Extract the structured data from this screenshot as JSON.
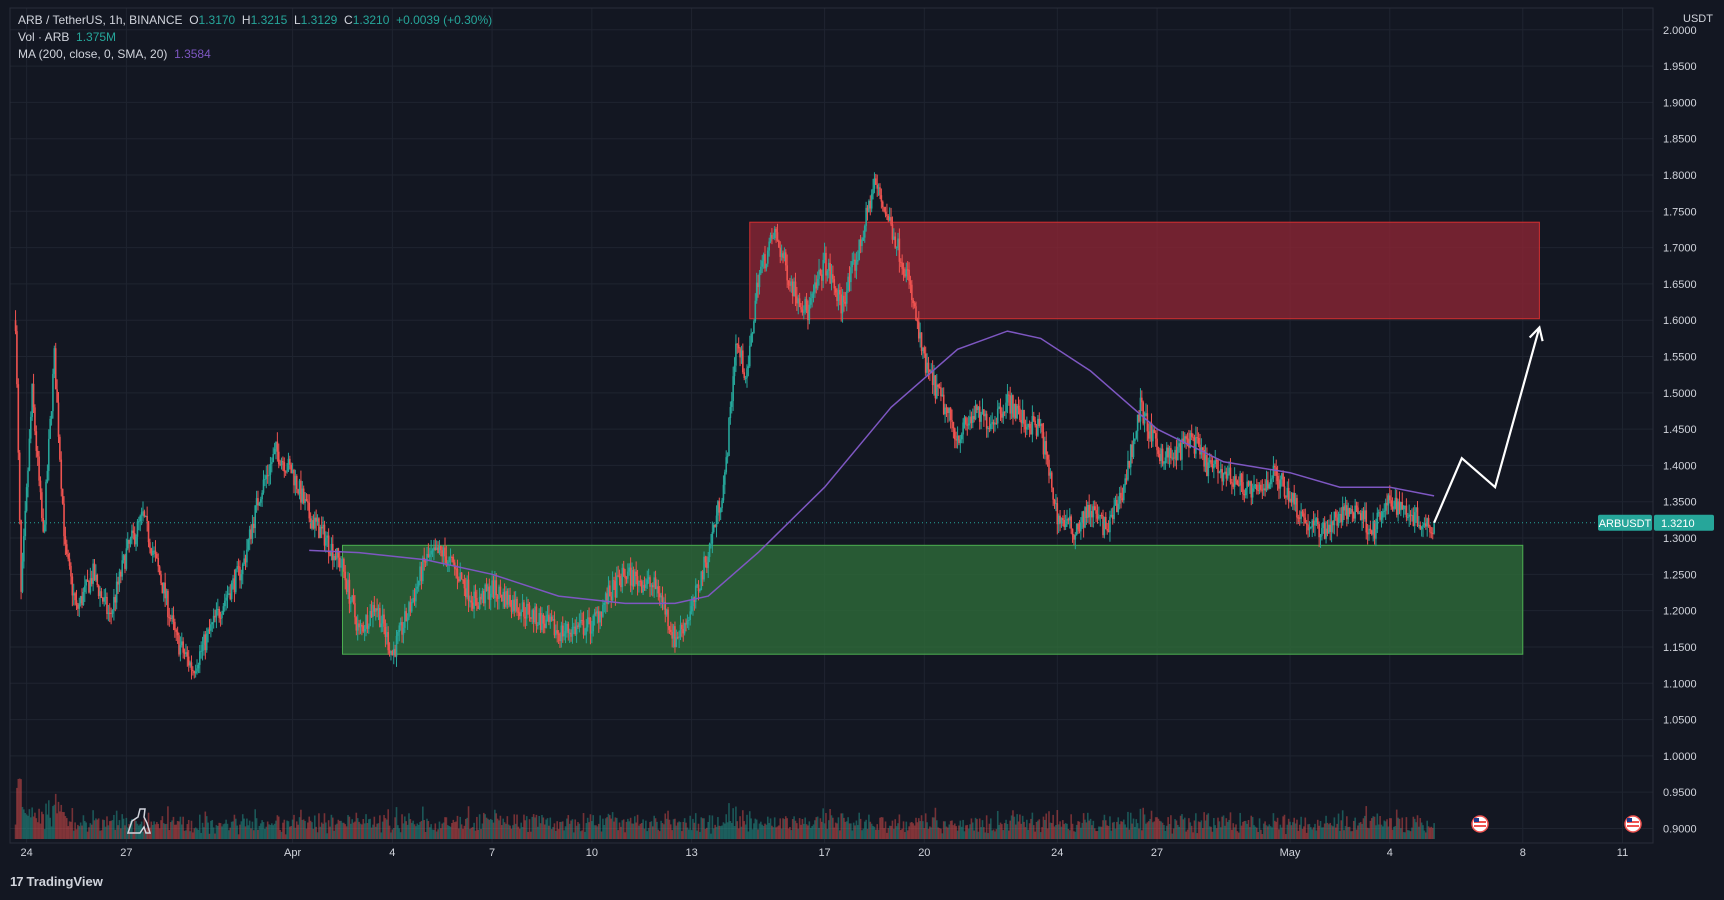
{
  "header": {
    "symbol": "ARB / TetherUS, 1h, BINANCE",
    "open_label": "O",
    "open": "1.3170",
    "high_label": "H",
    "high": "1.3215",
    "low_label": "L",
    "low": "1.3129",
    "close_label": "C",
    "close": "1.3210",
    "change": "+0.0039 (+0.30%)",
    "vol_label": "Vol · ARB",
    "vol_value": "1.375M",
    "ma_label": "MA (200, close, 0, SMA, 20)",
    "ma_value": "1.3584"
  },
  "price_axis": {
    "currency": "USDT",
    "ticker_label": "ARBUSDT",
    "last_price": "1.3210"
  },
  "branding": "TradingView",
  "colors": {
    "background": "#131722",
    "up": "#26a69a",
    "down": "#ef5350",
    "ma": "#7e57c2",
    "resistance_zone": "#8b2635",
    "support_zone": "#2e6b3a",
    "grid": "#1f2430",
    "text": "#d1d4dc"
  },
  "chart_data": {
    "type": "candlestick",
    "timeframe": "1h",
    "x_tick_labels": [
      "24",
      "27",
      "Apr",
      "4",
      "7",
      "10",
      "13",
      "17",
      "20",
      "24",
      "27",
      "May",
      "4",
      "8",
      "11"
    ],
    "y_tick_labels": [
      "2.0000",
      "1.9500",
      "1.9000",
      "1.8500",
      "1.8000",
      "1.7500",
      "1.7000",
      "1.6500",
      "1.6000",
      "1.5500",
      "1.5000",
      "1.4500",
      "1.4000",
      "1.3500",
      "1.3000",
      "1.2500",
      "1.2000",
      "1.1500",
      "1.1000",
      "1.0500",
      "1.0000",
      "0.9500",
      "0.9000"
    ],
    "ylim": [
      0.88,
      2.03
    ],
    "last_price": 1.321,
    "price_path": [
      [
        "2023-03-23 16:00",
        1.6
      ],
      [
        "2023-03-23 20:00",
        1.22
      ],
      [
        "2023-03-24 04:00",
        1.5
      ],
      [
        "2023-03-24 12:00",
        1.3
      ],
      [
        "2023-03-24 20:00",
        1.55
      ],
      [
        "2023-03-25 04:00",
        1.28
      ],
      [
        "2023-03-25 12:00",
        1.2
      ],
      [
        "2023-03-26 00:00",
        1.25
      ],
      [
        "2023-03-26 12:00",
        1.19
      ],
      [
        "2023-03-27 00:00",
        1.28
      ],
      [
        "2023-03-27 12:00",
        1.33
      ],
      [
        "2023-03-28 00:00",
        1.25
      ],
      [
        "2023-03-28 12:00",
        1.16
      ],
      [
        "2023-03-29 00:00",
        1.12
      ],
      [
        "2023-03-29 12:00",
        1.17
      ],
      [
        "2023-03-30 00:00",
        1.22
      ],
      [
        "2023-03-30 12:00",
        1.26
      ],
      [
        "2023-03-31 00:00",
        1.36
      ],
      [
        "2023-03-31 12:00",
        1.42
      ],
      [
        "2023-04-01 00:00",
        1.39
      ],
      [
        "2023-04-01 12:00",
        1.33
      ],
      [
        "2023-04-02 00:00",
        1.3
      ],
      [
        "2023-04-02 12:00",
        1.26
      ],
      [
        "2023-04-03 00:00",
        1.17
      ],
      [
        "2023-04-03 12:00",
        1.21
      ],
      [
        "2023-04-04 00:00",
        1.14
      ],
      [
        "2023-04-04 12:00",
        1.2
      ],
      [
        "2023-04-05 00:00",
        1.27
      ],
      [
        "2023-04-05 12:00",
        1.28
      ],
      [
        "2023-04-06 00:00",
        1.25
      ],
      [
        "2023-04-06 12:00",
        1.21
      ],
      [
        "2023-04-07 00:00",
        1.23
      ],
      [
        "2023-04-08 00:00",
        1.2
      ],
      [
        "2023-04-09 00:00",
        1.17
      ],
      [
        "2023-04-10 00:00",
        1.18
      ],
      [
        "2023-04-10 12:00",
        1.22
      ],
      [
        "2023-04-11 00:00",
        1.25
      ],
      [
        "2023-04-12 00:00",
        1.23
      ],
      [
        "2023-04-12 12:00",
        1.16
      ],
      [
        "2023-04-13 00:00",
        1.2
      ],
      [
        "2023-04-13 12:00",
        1.28
      ],
      [
        "2023-04-14 00:00",
        1.38
      ],
      [
        "2023-04-14 08:00",
        1.57
      ],
      [
        "2023-04-14 16:00",
        1.52
      ],
      [
        "2023-04-15 00:00",
        1.66
      ],
      [
        "2023-04-15 12:00",
        1.72
      ],
      [
        "2023-04-16 00:00",
        1.65
      ],
      [
        "2023-04-16 12:00",
        1.61
      ],
      [
        "2023-04-17 00:00",
        1.68
      ],
      [
        "2023-04-17 12:00",
        1.62
      ],
      [
        "2023-04-18 00:00",
        1.69
      ],
      [
        "2023-04-18 12:00",
        1.79
      ],
      [
        "2023-04-19 00:00",
        1.73
      ],
      [
        "2023-04-19 12:00",
        1.66
      ],
      [
        "2023-04-20 00:00",
        1.54
      ],
      [
        "2023-04-20 12:00",
        1.49
      ],
      [
        "2023-04-21 00:00",
        1.44
      ],
      [
        "2023-04-21 12:00",
        1.47
      ],
      [
        "2023-04-22 00:00",
        1.46
      ],
      [
        "2023-04-22 12:00",
        1.49
      ],
      [
        "2023-04-23 00:00",
        1.46
      ],
      [
        "2023-04-23 12:00",
        1.45
      ],
      [
        "2023-04-24 00:00",
        1.33
      ],
      [
        "2023-04-24 12:00",
        1.31
      ],
      [
        "2023-04-25 00:00",
        1.34
      ],
      [
        "2023-04-25 12:00",
        1.31
      ],
      [
        "2023-04-26 00:00",
        1.37
      ],
      [
        "2023-04-26 12:00",
        1.48
      ],
      [
        "2023-04-27 00:00",
        1.42
      ],
      [
        "2023-04-27 12:00",
        1.41
      ],
      [
        "2023-04-28 00:00",
        1.44
      ],
      [
        "2023-04-28 12:00",
        1.4
      ],
      [
        "2023-04-29 00:00",
        1.39
      ],
      [
        "2023-04-30 00:00",
        1.36
      ],
      [
        "2023-04-30 12:00",
        1.39
      ],
      [
        "2023-05-01 00:00",
        1.36
      ],
      [
        "2023-05-01 12:00",
        1.32
      ],
      [
        "2023-05-02 00:00",
        1.31
      ],
      [
        "2023-05-02 12:00",
        1.33
      ],
      [
        "2023-05-03 00:00",
        1.34
      ],
      [
        "2023-05-03 12:00",
        1.31
      ],
      [
        "2023-05-04 00:00",
        1.35
      ],
      [
        "2023-05-04 12:00",
        1.34
      ],
      [
        "2023-05-05 00:00",
        1.32
      ],
      [
        "2023-05-05 08:00",
        1.321
      ]
    ],
    "ma_200": [
      [
        "2023-04-01 12:00",
        1.283
      ],
      [
        "2023-04-03 00:00",
        1.28
      ],
      [
        "2023-04-05 00:00",
        1.27
      ],
      [
        "2023-04-07 00:00",
        1.25
      ],
      [
        "2023-04-09 00:00",
        1.22
      ],
      [
        "2023-04-11 00:00",
        1.21
      ],
      [
        "2023-04-12 12:00",
        1.21
      ],
      [
        "2023-04-13 12:00",
        1.22
      ],
      [
        "2023-04-15 00:00",
        1.28
      ],
      [
        "2023-04-17 00:00",
        1.37
      ],
      [
        "2023-04-19 00:00",
        1.48
      ],
      [
        "2023-04-21 00:00",
        1.56
      ],
      [
        "2023-04-22 12:00",
        1.585
      ],
      [
        "2023-04-23 12:00",
        1.575
      ],
      [
        "2023-04-25 00:00",
        1.53
      ],
      [
        "2023-04-27 00:00",
        1.45
      ],
      [
        "2023-04-29 00:00",
        1.405
      ],
      [
        "2023-05-01 00:00",
        1.39
      ],
      [
        "2023-05-02 12:00",
        1.37
      ],
      [
        "2023-05-04 00:00",
        1.37
      ],
      [
        "2023-05-05 08:00",
        1.358
      ]
    ],
    "zones": [
      {
        "type": "resistance",
        "from": "2023-04-14 18:00",
        "to": "2023-05-08 12:00",
        "top": 1.735,
        "bottom": 1.602
      },
      {
        "type": "support",
        "from": "2023-04-02 12:00",
        "to": "2023-05-08 00:00",
        "top": 1.29,
        "bottom": 1.14
      }
    ],
    "projection_path": [
      [
        "2023-05-05 08:00",
        1.321
      ],
      [
        "2023-05-06 04:00",
        1.41
      ],
      [
        "2023-05-07 04:00",
        1.37
      ],
      [
        "2023-05-08 12:00",
        1.59
      ]
    ]
  }
}
